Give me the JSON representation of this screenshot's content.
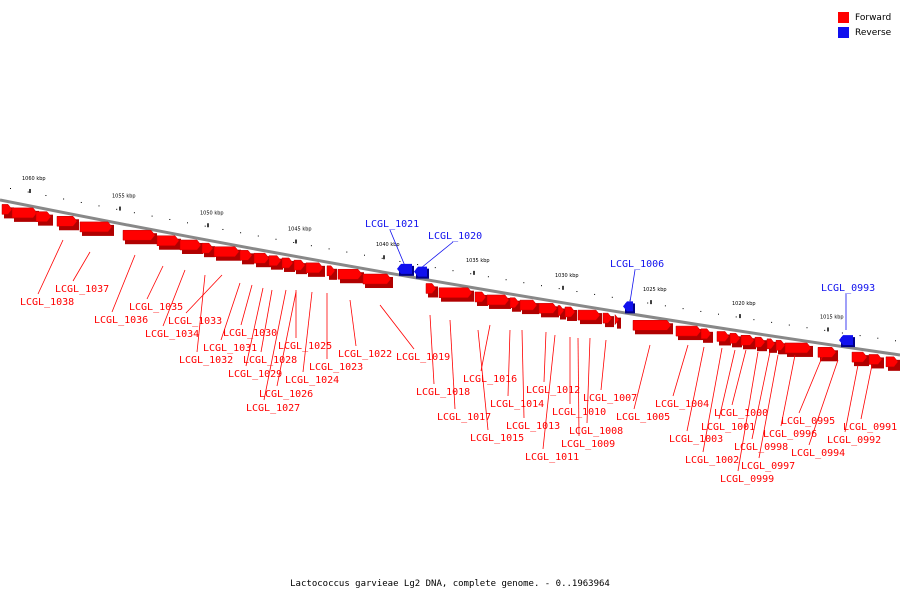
{
  "legend": {
    "forward_label": "Forward",
    "reverse_label": "Reverse",
    "forward_color": "#ff0000",
    "reverse_color": "#1010ee"
  },
  "caption": "Lactococcus garvieae Lg2 DNA, complete genome. - 0..1963964",
  "scale": {
    "labels": [
      "1060 kbp",
      "1055 kbp",
      "1050 kbp",
      "1045 kbp",
      "1040 kbp",
      "1035 kbp",
      "1030 kbp",
      "1025 kbp",
      "1020 kbp",
      "1015 kbp"
    ]
  },
  "genes": {
    "forward": [
      "LCGL_1038",
      "LCGL_1037",
      "LCGL_1036",
      "LCGL_1035",
      "LCGL_1034",
      "LCGL_1033",
      "LCGL_1032",
      "LCGL_1031",
      "LCGL_1030",
      "LCGL_1029",
      "LCGL_1028",
      "LCGL_1027",
      "LCGL_1026",
      "LCGL_1025",
      "LCGL_1024",
      "LCGL_1023",
      "LCGL_1022",
      "LCGL_1019",
      "LCGL_1018",
      "LCGL_1017",
      "LCGL_1016",
      "LCGL_1015",
      "LCGL_1014",
      "LCGL_1013",
      "LCGL_1012",
      "LCGL_1011",
      "LCGL_1010",
      "LCGL_1009",
      "LCGL_1008",
      "LCGL_1007",
      "LCGL_1005",
      "LCGL_1004",
      "LCGL_1003",
      "LCGL_1002",
      "LCGL_1001",
      "LCGL_1000",
      "LCGL_0999",
      "LCGL_0998",
      "LCGL_0997",
      "LCGL_0996",
      "LCGL_0995",
      "LCGL_0994",
      "LCGL_0992",
      "LCGL_0991"
    ],
    "reverse": [
      "LCGL_1021",
      "LCGL_1020",
      "LCGL_1006",
      "LCGL_0993"
    ]
  }
}
